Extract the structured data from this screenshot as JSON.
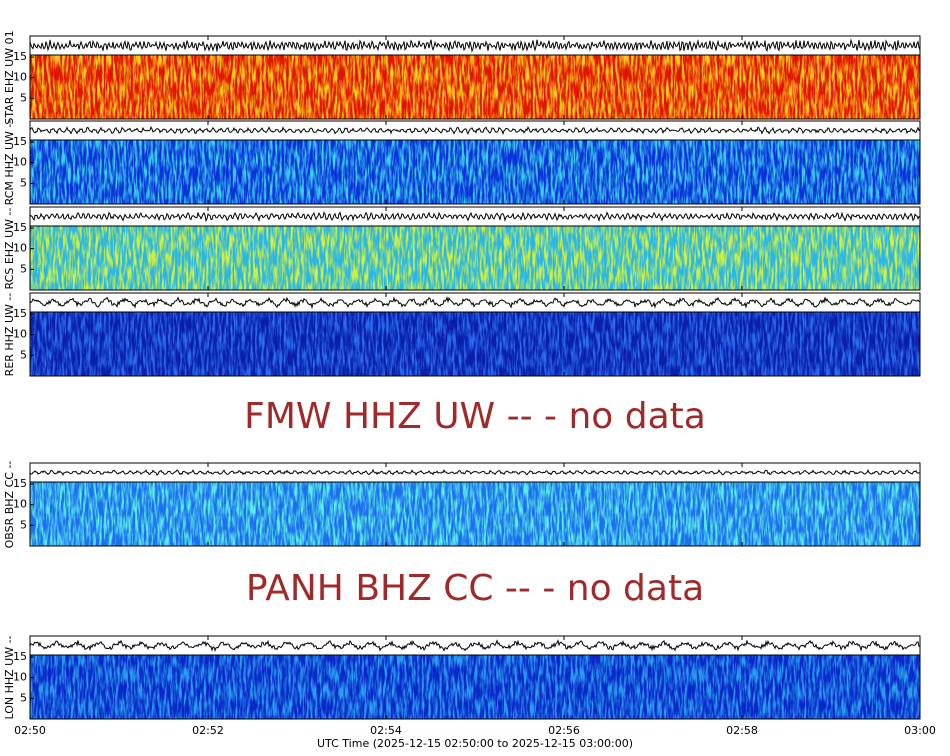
{
  "chart_data": {
    "type": "spectrogram",
    "xlabel": "UTC Time (2025-12-15 02:50:00 to 2025-12-15 03:00:00)",
    "xlim": [
      "02:50",
      "03:00"
    ],
    "xticks": [
      "02:50",
      "02:52",
      "02:54",
      "02:56",
      "02:58",
      "03:00"
    ],
    "ylim": [
      0,
      15.5
    ],
    "yticks": [
      5,
      10,
      15
    ],
    "rows": [
      {
        "label": "STAR EHZ UW 01",
        "colors": [
          "#e01400",
          "#ffd21e"
        ]
      },
      {
        "label": "RCM HHZ UW --",
        "colors": [
          "#0a32d8",
          "#3cd2f0"
        ]
      },
      {
        "label": "RCS EHZ UW --",
        "colors": [
          "#2ab6e6",
          "#d2f03c"
        ]
      },
      {
        "label": "RER HHZ UW --",
        "colors": [
          "#0a1ea8",
          "#2a6ef0"
        ]
      },
      {
        "message": "FMW HHZ UW -- - no data"
      },
      {
        "label": "OBSR BHZ CC --",
        "colors": [
          "#1e6ef0",
          "#5af0e6"
        ]
      },
      {
        "message": "PANH BHZ CC -- - no data"
      },
      {
        "label": "LON HHZ UW --",
        "colors": [
          "#0a28c8",
          "#2aa0f0"
        ]
      }
    ]
  }
}
